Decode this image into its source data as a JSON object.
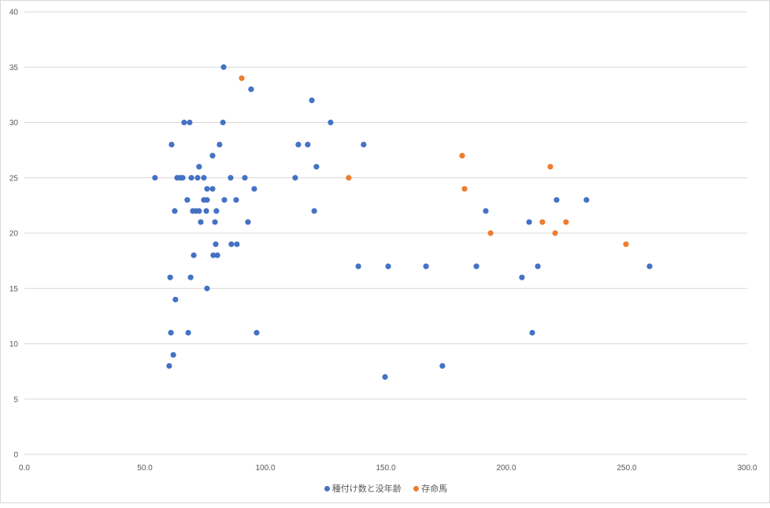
{
  "chart_data": {
    "type": "scatter",
    "title": "",
    "xlabel": "",
    "ylabel": "",
    "xlim": [
      0,
      300
    ],
    "ylim": [
      0,
      40
    ],
    "x_ticks": [
      "0.0",
      "50.0",
      "100.0",
      "150.0",
      "200.0",
      "250.0",
      "300.0"
    ],
    "y_ticks": [
      "0",
      "5",
      "10",
      "15",
      "20",
      "25",
      "30",
      "35",
      "40"
    ],
    "grid": "horizontal",
    "legend_position": "bottom",
    "series": [
      {
        "name": "種付け数と没年齢",
        "color": "#4472c4",
        "points": [
          [
            54.2,
            25
          ],
          [
            60.5,
            16
          ],
          [
            61.1,
            28
          ],
          [
            60.8,
            11
          ],
          [
            60.1,
            8
          ],
          [
            61.8,
            9
          ],
          [
            62.4,
            22
          ],
          [
            62.7,
            14
          ],
          [
            63.4,
            25
          ],
          [
            64.7,
            25
          ],
          [
            65.7,
            25
          ],
          [
            66.3,
            30
          ],
          [
            67.6,
            23
          ],
          [
            68.0,
            11
          ],
          [
            68.6,
            30
          ],
          [
            69.0,
            16
          ],
          [
            69.3,
            25
          ],
          [
            69.9,
            22
          ],
          [
            70.3,
            18
          ],
          [
            71.2,
            22
          ],
          [
            71.9,
            25
          ],
          [
            72.5,
            26
          ],
          [
            72.5,
            22
          ],
          [
            73.2,
            21
          ],
          [
            74.5,
            25
          ],
          [
            74.5,
            23
          ],
          [
            75.5,
            22
          ],
          [
            75.8,
            15
          ],
          [
            75.8,
            24
          ],
          [
            75.8,
            23
          ],
          [
            78.1,
            27
          ],
          [
            78.1,
            24
          ],
          [
            78.4,
            18
          ],
          [
            79.1,
            21
          ],
          [
            79.4,
            19
          ],
          [
            79.7,
            22
          ],
          [
            80.1,
            18
          ],
          [
            81.0,
            28
          ],
          [
            82.4,
            30
          ],
          [
            82.7,
            35
          ],
          [
            83.0,
            23
          ],
          [
            85.6,
            25
          ],
          [
            85.9,
            19
          ],
          [
            87.9,
            23
          ],
          [
            88.2,
            19
          ],
          [
            91.5,
            25
          ],
          [
            92.8,
            21
          ],
          [
            94.1,
            33
          ],
          [
            95.4,
            24
          ],
          [
            96.4,
            11
          ],
          [
            112.4,
            25
          ],
          [
            113.7,
            28
          ],
          [
            117.6,
            28
          ],
          [
            119.3,
            32
          ],
          [
            120.3,
            22
          ],
          [
            121.2,
            26
          ],
          [
            127.1,
            30
          ],
          [
            138.6,
            17
          ],
          [
            140.8,
            28
          ],
          [
            149.7,
            7
          ],
          [
            151.0,
            17
          ],
          [
            166.7,
            17
          ],
          [
            173.5,
            8
          ],
          [
            187.6,
            17
          ],
          [
            191.5,
            22
          ],
          [
            206.5,
            16
          ],
          [
            209.5,
            21
          ],
          [
            210.8,
            11
          ],
          [
            213.1,
            17
          ],
          [
            220.9,
            23
          ],
          [
            233.3,
            23
          ],
          [
            259.5,
            17
          ]
        ]
      },
      {
        "name": "存命馬",
        "color": "#ed7d31",
        "points": [
          [
            90.2,
            34
          ],
          [
            134.6,
            25
          ],
          [
            181.7,
            27
          ],
          [
            182.7,
            24
          ],
          [
            193.5,
            20
          ],
          [
            215.0,
            21
          ],
          [
            218.3,
            26
          ],
          [
            220.3,
            20
          ],
          [
            224.8,
            21
          ],
          [
            249.7,
            19
          ]
        ]
      }
    ]
  }
}
